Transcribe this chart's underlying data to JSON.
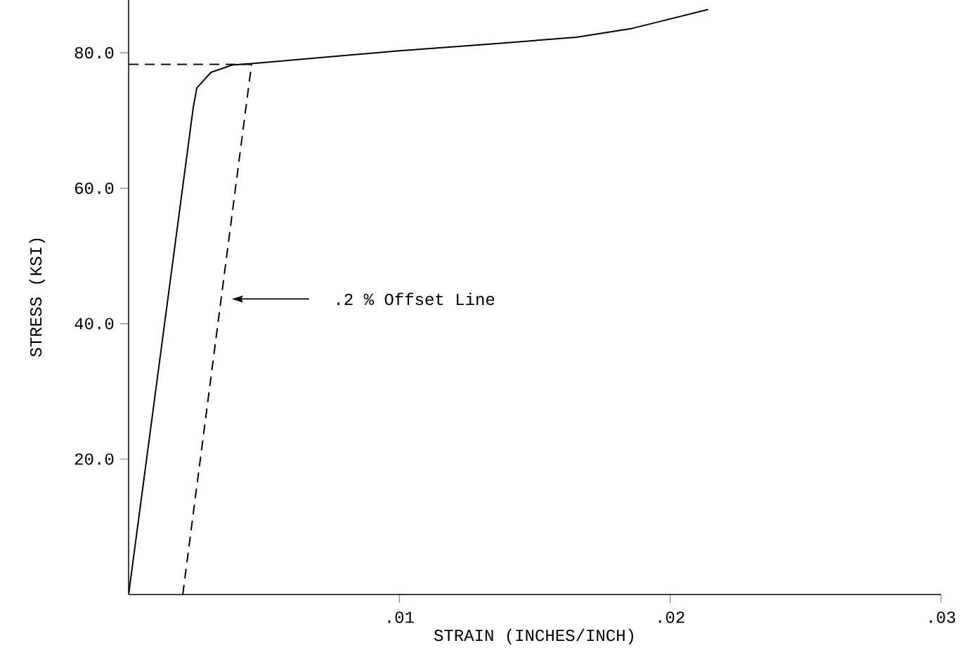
{
  "chart_data": {
    "type": "line",
    "xlabel": "STRAIN (INCHES/INCH)",
    "ylabel": "STRESS (KSI)",
    "xlim": [
      0,
      0.03
    ],
    "ylim": [
      0,
      88
    ],
    "xticks": [
      {
        "value": 0.01,
        "label": ".01"
      },
      {
        "value": 0.02,
        "label": ".02"
      },
      {
        "value": 0.03,
        "label": ".03"
      }
    ],
    "yticks": [
      {
        "value": 20,
        "label": "20.0"
      },
      {
        "value": 40,
        "label": "40.0"
      },
      {
        "value": 60,
        "label": "60.0"
      },
      {
        "value": 80,
        "label": "80.0"
      }
    ],
    "series": [
      {
        "color": "#000000",
        "line_style": "solid",
        "x": [
          0,
          0.00239,
          0.00252,
          0.00304,
          0.00382,
          0.00454,
          0.01,
          0.01342,
          0.01653,
          0.0186,
          0.0199,
          0.0214
        ],
        "values": [
          0,
          72.0,
          74.8,
          77.1,
          78.2,
          78.4,
          80.3,
          81.3,
          82.3,
          83.6,
          84.9,
          86.4
        ]
      },
      {
        "color": "#000000",
        "line_style": "dashed",
        "x": [
          0.002,
          0.00454
        ],
        "values": [
          0,
          78.3
        ]
      },
      {
        "color": "#000000",
        "line_style": "dashed",
        "x": [
          0,
          0.00454
        ],
        "values": [
          78.3,
          78.3
        ]
      }
    ],
    "annotations": [
      ".2 % Offset Line"
    ]
  }
}
